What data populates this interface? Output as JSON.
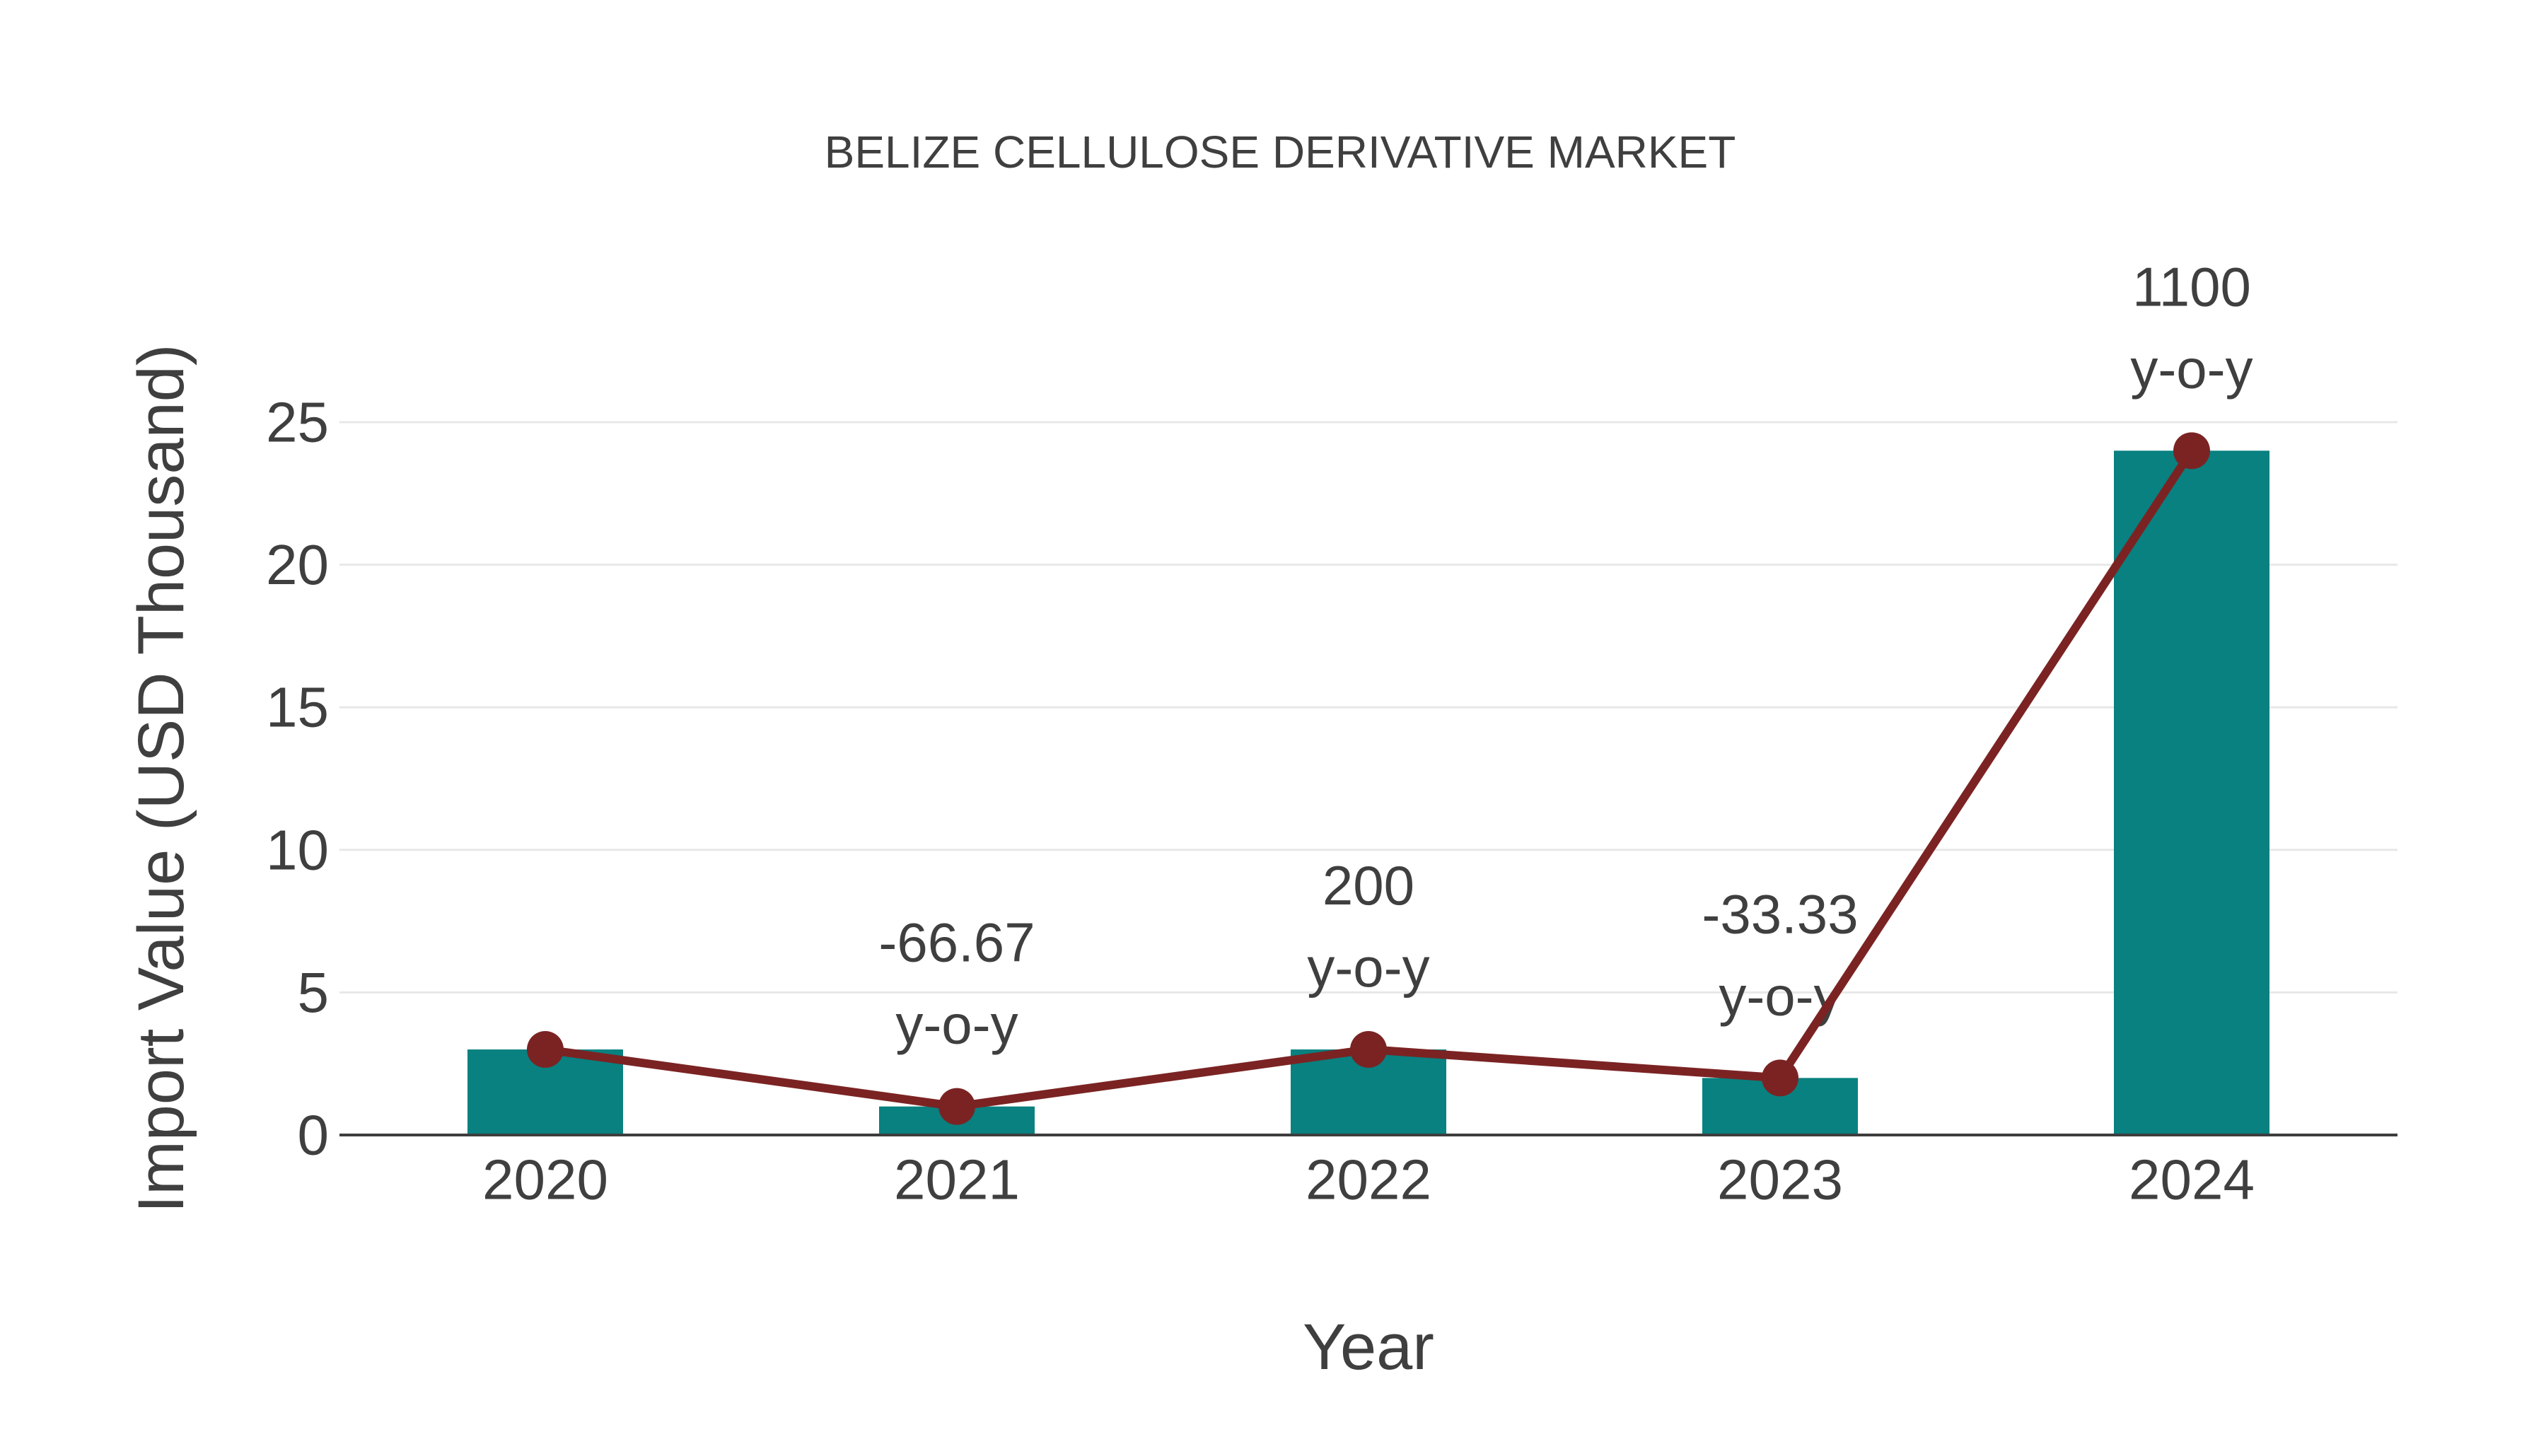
{
  "chart_data": {
    "type": "bar",
    "title": "BELIZE CELLULOSE DERIVATIVE MARKET",
    "xlabel": "Year",
    "ylabel": "Import Value (USD Thousand)",
    "categories": [
      "2020",
      "2021",
      "2022",
      "2023",
      "2024"
    ],
    "series": [
      {
        "name": "import-value-bars",
        "type": "bar",
        "values": [
          3,
          1,
          3,
          2,
          24
        ]
      },
      {
        "name": "import-value-line",
        "type": "line",
        "values": [
          3,
          1,
          3,
          2,
          24
        ]
      }
    ],
    "annotations": [
      {
        "category": "2021",
        "lines": [
          "-66.67",
          "y-o-y"
        ]
      },
      {
        "category": "2022",
        "lines": [
          "200",
          "y-o-y"
        ]
      },
      {
        "category": "2023",
        "lines": [
          "-33.33",
          "y-o-y"
        ]
      },
      {
        "category": "2024",
        "lines": [
          "1100",
          "y-o-y"
        ]
      }
    ],
    "yticks": [
      "0",
      "5",
      "10",
      "15",
      "20",
      "25"
    ],
    "ylim": [
      0,
      25
    ],
    "grid": true,
    "legend": false,
    "colors": {
      "bar": "#088180",
      "line": "#7b2323",
      "marker": "#7b2323",
      "grid": "#e8e8e8",
      "axis_line": "#3d3d3d",
      "text": "#3f3f3f",
      "background": "#ffffff"
    }
  }
}
